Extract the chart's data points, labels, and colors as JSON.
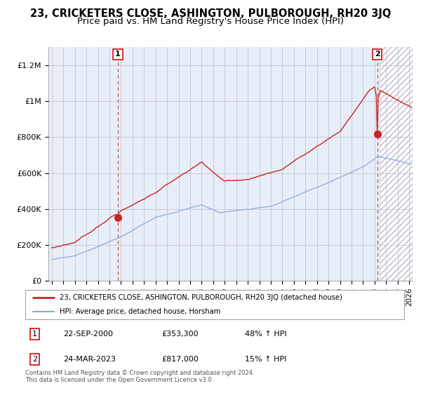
{
  "title": "23, CRICKETERS CLOSE, ASHINGTON, PULBOROUGH, RH20 3JQ",
  "subtitle": "Price paid vs. HM Land Registry's House Price Index (HPI)",
  "ylim": [
    0,
    1300000
  ],
  "yticks": [
    0,
    200000,
    400000,
    600000,
    800000,
    1000000,
    1200000
  ],
  "ytick_labels": [
    "£0",
    "£200K",
    "£400K",
    "£600K",
    "£800K",
    "£1M",
    "£1.2M"
  ],
  "xlim_start": 1994.7,
  "xlim_end": 2026.3,
  "xticks": [
    1995,
    1996,
    1997,
    1998,
    1999,
    2000,
    2001,
    2002,
    2003,
    2004,
    2005,
    2006,
    2007,
    2008,
    2009,
    2010,
    2011,
    2012,
    2013,
    2014,
    2015,
    2016,
    2017,
    2018,
    2019,
    2020,
    2021,
    2022,
    2023,
    2024,
    2025,
    2026
  ],
  "line1_color": "#cc2222",
  "line2_color": "#88aadd",
  "bg_fill_color": "#e8eef8",
  "sale1_x": 2000.72,
  "sale1_y": 353300,
  "sale2_x": 2023.23,
  "sale2_y": 817000,
  "legend_line1": "23, CRICKETERS CLOSE, ASHINGTON, PULBOROUGH, RH20 3JQ (detached house)",
  "legend_line2": "HPI: Average price, detached house, Horsham",
  "ann1_date": "22-SEP-2000",
  "ann1_price": "£353,300",
  "ann1_hpi": "48% ↑ HPI",
  "ann2_date": "24-MAR-2023",
  "ann2_price": "£817,000",
  "ann2_hpi": "15% ↑ HPI",
  "footer": "Contains HM Land Registry data © Crown copyright and database right 2024.\nThis data is licensed under the Open Government Licence v3.0.",
  "background_color": "#ffffff",
  "grid_color": "#bbbbcc"
}
